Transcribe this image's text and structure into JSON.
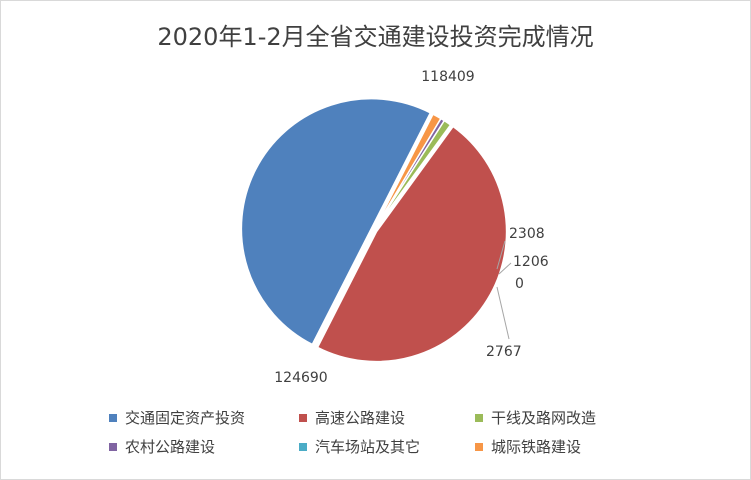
{
  "chart_data": {
    "type": "pie",
    "title": "2020年1-2月全省交通建设投资完成情况",
    "categories": [
      "交通固定资产投资",
      "高速公路建设",
      "干线及路网改造",
      "农村公路建设",
      "汽车场站及其它",
      "城际铁路建设"
    ],
    "values": [
      124690,
      118409,
      2308,
      1206,
      0,
      2767
    ],
    "data_labels": [
      "124690",
      "118409",
      "2308",
      "1206",
      "0",
      "2767"
    ],
    "colors": [
      "#4f81bd",
      "#c0504d",
      "#9bbb59",
      "#8064a2",
      "#4bacc6",
      "#f79646"
    ],
    "legend_position": "bottom"
  }
}
